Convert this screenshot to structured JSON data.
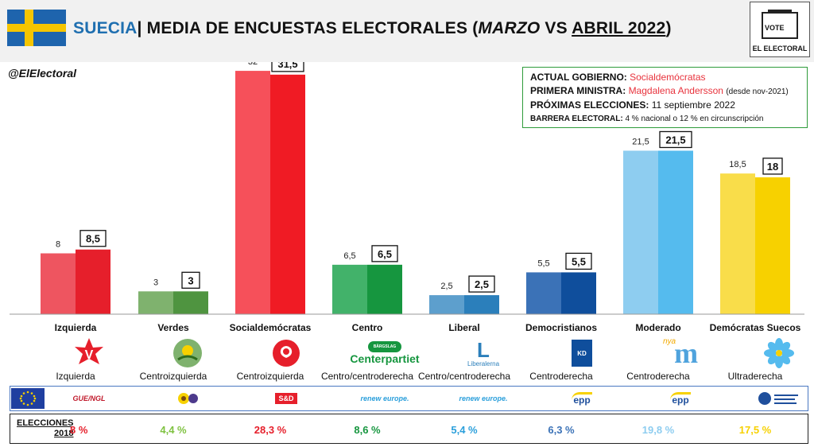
{
  "header": {
    "country": "SUECIA",
    "sep": "| ",
    "title_main": "MEDIA DE ENCUESTAS ELECTORALES (",
    "title_marzo": "MARZO",
    "title_vs": " VS ",
    "title_abril": "ABRIL 2022",
    "title_close": ")",
    "flag_colors": [
      "#1e64ad",
      "#f5c500"
    ]
  },
  "logo": {
    "vote_text": "VOTE",
    "name": "EL ELECTORAL"
  },
  "handle": "@ElElectoral",
  "info": {
    "gov_label": "ACTUAL GOBIERNO:",
    "gov_value": "Socialdemócratas",
    "pm_label": "PRIMERA MINISTRA:",
    "pm_value": "Magdalena Andersson",
    "pm_note": "(desde nov-2021)",
    "next_label": "PRÓXIMAS ELECCIONES:",
    "next_value": "11 septiembre 2022",
    "barrier_label": "BARRERA ELECTORAL:",
    "barrier_value": "4 % nacional o 12 % en circunscripción"
  },
  "chart_data": {
    "type": "bar",
    "categories": [
      "Izquierda",
      "Verdes",
      "Socialdemócratas",
      "Centro",
      "Liberal",
      "Democristianos",
      "Moderado",
      "Demócratas Suecos"
    ],
    "series": [
      {
        "values": [
          8,
          3,
          32,
          6.5,
          2.5,
          5.5,
          21.5,
          18.5
        ]
      },
      {
        "values": [
          8.5,
          3,
          31.5,
          6.5,
          2.5,
          5.5,
          21.5,
          18
        ]
      }
    ],
    "value_labels": {
      "marzo": [
        "8",
        "3",
        "32",
        "6,5",
        "2,5",
        "5,5",
        "21,5",
        "18,5"
      ],
      "abril": [
        "8,5",
        "3",
        "31,5",
        "6,5",
        "2,5",
        "5,5",
        "21,5",
        "18"
      ]
    },
    "colors_marzo": [
      "#ee5560",
      "#7fb26e",
      "#f6505a",
      "#42b26a",
      "#5d9fcd",
      "#3b72b7",
      "#8ecdf0",
      "#f9dd4a"
    ],
    "colors_abril": [
      "#e61f2b",
      "#4f9440",
      "#f01b24",
      "#16963f",
      "#2b7fbb",
      "#0f4e9c",
      "#55bbee",
      "#f7d100"
    ],
    "ylim": [
      0,
      32
    ],
    "grid": false,
    "legend": "none"
  },
  "parties": {
    "logo_texts": {
      "centro": "Centerpartiet",
      "centro_badge": "BÄRGSLAG POLITIK",
      "liberal": "Liberalerna",
      "kd": "KD",
      "nya": "nya",
      "mod": "m"
    },
    "ideologies": [
      "Izquierda",
      "Centroizquierda",
      "Centroizquierda",
      "Centro/centroderecha",
      "Centro/centroderecha",
      "Centroderecha",
      "Centroderecha",
      "Ultraderecha"
    ],
    "eu_groups": [
      "GUE/NGL",
      "",
      "S&D",
      "renew europe.",
      "renew europe.",
      "epp",
      "epp",
      ""
    ]
  },
  "results": {
    "label_line1": "ELECCIONES",
    "label_line2": "2018",
    "values": [
      "8 %",
      "4,4 %",
      "28,3 %",
      "8,6 %",
      "5,4 %",
      "6,3 %",
      "19,8 %",
      "17,5 %"
    ],
    "colors": [
      "#e61f2b",
      "#7fc241",
      "#e61f2b",
      "#16963f",
      "#2b9fdb",
      "#3b72b7",
      "#8ecdf0",
      "#f7d100"
    ]
  }
}
